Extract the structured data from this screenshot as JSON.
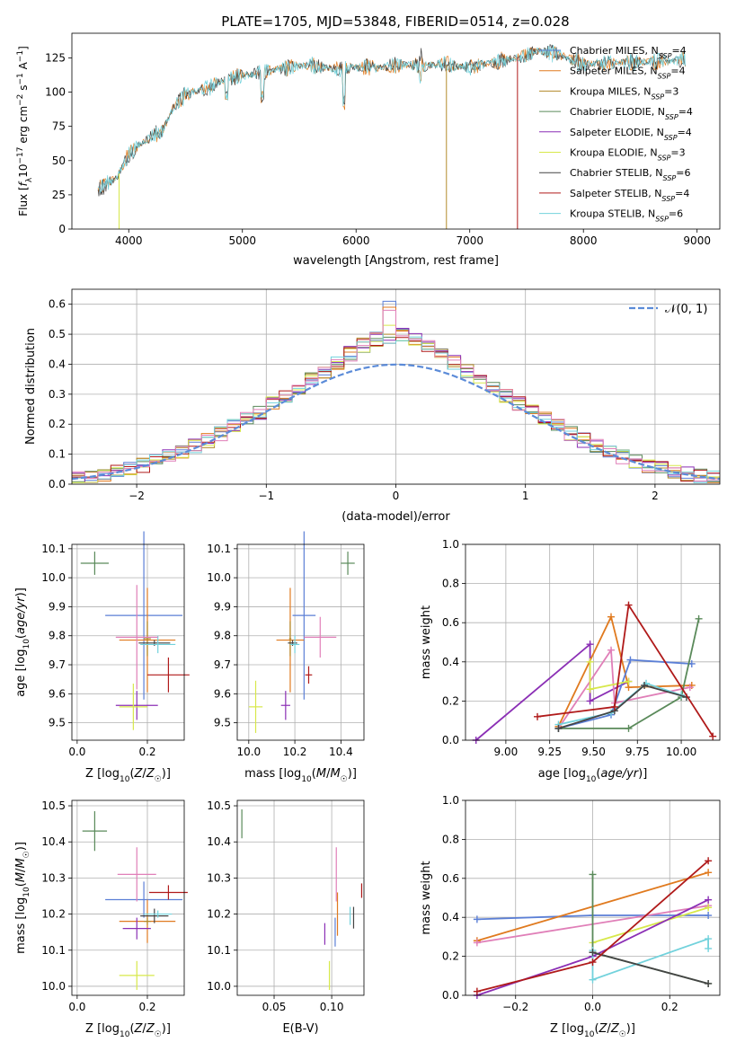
{
  "page_title": "PLATE=1705, MJD=53848, FIBERID=0514, z=0.028",
  "colors": {
    "Chabrier MILES": "#5b7fd6",
    "Salpeter MILES": "#e07a1f",
    "Kroupa MILES": "#b38a2a",
    "Chabrier ELODIE": "#5a8a5a",
    "Salpeter ELODIE": "#8b2fb5",
    "Kroupa ELODIE": "#d7e84a",
    "Chabrier STELIB": "#444444",
    "Salpeter STELIB": "#b01a1a",
    "Kroupa STELIB": "#72d2dc",
    "pink": "#e07fb8",
    "normal_curve": "#5b8bd8"
  },
  "chart_data": [
    {
      "id": "spectrum",
      "type": "line",
      "title": "PLATE=1705, MJD=53848, FIBERID=0514, z=0.028",
      "xlabel": "wavelength [Angstrom, rest frame]",
      "ylabel": "Flux [f_λ 10^-17 erg cm^-2 s^-1 A^-1]",
      "xlim": [
        3500,
        9200
      ],
      "ylim": [
        0,
        143
      ],
      "xticks": [
        4000,
        5000,
        6000,
        7000,
        8000,
        9000
      ],
      "yticks": [
        0,
        25,
        50,
        75,
        100,
        125
      ],
      "legend_position": "right",
      "series": [
        {
          "name": "Chabrier MILES, N_SSP=4"
        },
        {
          "name": "Salpeter MILES, N_SSP=4"
        },
        {
          "name": "Kroupa MILES, N_SSP=3"
        },
        {
          "name": "Chabrier ELODIE, N_SSP=4"
        },
        {
          "name": "Salpeter ELODIE, N_SSP=4"
        },
        {
          "name": "Kroupa ELODIE, N_SSP=3"
        },
        {
          "name": "Chabrier STELIB, N_SSP=6"
        },
        {
          "name": "Salpeter STELIB, N_SSP=4"
        },
        {
          "name": "Kroupa STELIB, N_SSP=6"
        }
      ],
      "continuum": {
        "x": [
          3720,
          3800,
          3900,
          4000,
          4100,
          4200,
          4300,
          4400,
          4500,
          4600,
          4700,
          4800,
          4900,
          5000,
          5200,
          5400,
          5600,
          5800,
          6000,
          6200,
          6400,
          6600,
          6800,
          7000,
          7200,
          7400,
          7600,
          7800,
          8000,
          8200,
          8500,
          8800,
          8900
        ],
        "y": [
          28,
          33,
          38,
          55,
          62,
          68,
          72,
          90,
          98,
          101,
          103,
          108,
          110,
          112,
          115,
          118,
          120,
          117,
          118,
          118,
          120,
          120,
          120,
          118,
          122,
          125,
          130,
          127,
          120,
          121,
          122,
          123,
          124
        ]
      },
      "absorption_lines": [
        {
          "x": 4861,
          "depth": 12
        },
        {
          "x": 5175,
          "depth": 20
        },
        {
          "x": 5893,
          "depth": 25
        },
        {
          "x": 6563,
          "depth": 10
        }
      ],
      "drops_to_zero": [
        {
          "x": 3915,
          "series": "Kroupa ELODIE"
        },
        {
          "x": 6795,
          "series": "Kroupa MILES"
        },
        {
          "x": 7420,
          "series": "Salpeter STELIB"
        }
      ]
    },
    {
      "id": "residual_histogram",
      "type": "line",
      "xlabel": "(data-model)/error",
      "ylabel": "Normed distribution",
      "xlim": [
        -2.5,
        2.5
      ],
      "ylim": [
        0,
        0.65
      ],
      "xticks": [
        -2,
        -1,
        0,
        1,
        2
      ],
      "xtick_labels": [
        "−2",
        "−1",
        "0",
        "1",
        "2"
      ],
      "yticks": [
        0.0,
        0.1,
        0.2,
        0.3,
        0.4,
        0.5,
        0.6
      ],
      "legend": "𝒩(0, 1)",
      "legend_position": "top-right",
      "bin_width": 0.1,
      "bin_count": 50,
      "bin_start": -2.5,
      "peak_values": [
        0.61,
        0.59,
        0.5,
        0.49,
        0.48,
        0.53,
        0.47,
        0.47,
        0.58
      ]
    },
    {
      "id": "age_vs_Z",
      "type": "scatter",
      "xlabel": "Z [log10(Z/Z☉)]",
      "ylabel": "age  [log10(age/yr)]",
      "xlim": [
        -0.015,
        0.305
      ],
      "ylim": [
        9.44,
        10.115
      ],
      "xticks": [
        0.0,
        0.2
      ],
      "yticks": [
        9.5,
        9.6,
        9.7,
        9.8,
        9.9,
        10.0,
        10.1
      ],
      "points": [
        {
          "series": "Chabrier MILES",
          "x": 0.19,
          "y": 9.87,
          "xerr": 0.11,
          "yerr": 0.29
        },
        {
          "series": "Salpeter MILES",
          "x": 0.2,
          "y": 9.785,
          "xerr": 0.08,
          "yerr": 0.18
        },
        {
          "series": "Kroupa MILES",
          "x": 0.2,
          "y": 9.79,
          "xerr": 0.01,
          "yerr": 0.06
        },
        {
          "series": "Chabrier ELODIE",
          "x": 0.05,
          "y": 10.05,
          "xerr": 0.04,
          "yerr": 0.04
        },
        {
          "series": "Salpeter ELODIE",
          "x": 0.17,
          "y": 9.56,
          "xerr": 0.06,
          "yerr": 0.05
        },
        {
          "series": "Kroupa ELODIE",
          "x": 0.16,
          "y": 9.555,
          "xerr": 0.04,
          "yerr": 0.08
        },
        {
          "series": "Chabrier STELIB",
          "x": 0.22,
          "y": 9.775,
          "xerr": 0.045,
          "yerr": 0.01
        },
        {
          "series": "Salpeter STELIB",
          "x": 0.26,
          "y": 9.665,
          "xerr": 0.06,
          "yerr": 0.06
        },
        {
          "series": "Kroupa STELIB",
          "x": 0.23,
          "y": 9.77,
          "xerr": 0.05,
          "yerr": 0.03
        },
        {
          "series": "pink",
          "x": 0.17,
          "y": 9.795,
          "xerr": 0.06,
          "yerr": 0.18
        }
      ]
    },
    {
      "id": "age_vs_mass",
      "type": "scatter",
      "xlabel": "mass [log10(M/M☉)]",
      "ylabel": "",
      "xlim": [
        9.95,
        10.5
      ],
      "ylim": [
        9.44,
        10.115
      ],
      "xticks": [
        10.0,
        10.2,
        10.4
      ],
      "yticks": [
        9.5,
        9.6,
        9.7,
        9.8,
        9.9,
        10.0,
        10.1
      ],
      "points": [
        {
          "series": "Chabrier MILES",
          "x": 10.24,
          "y": 9.87,
          "xerr": 0.05,
          "yerr": 0.29
        },
        {
          "series": "Salpeter MILES",
          "x": 10.18,
          "y": 9.785,
          "xerr": 0.06,
          "yerr": 0.18
        },
        {
          "series": "Kroupa MILES",
          "x": 10.18,
          "y": 9.79,
          "xerr": 0.005,
          "yerr": 0.06
        },
        {
          "series": "Chabrier ELODIE",
          "x": 10.43,
          "y": 10.05,
          "xerr": 0.03,
          "yerr": 0.04
        },
        {
          "series": "Salpeter ELODIE",
          "x": 10.16,
          "y": 9.56,
          "xerr": 0.02,
          "yerr": 0.05
        },
        {
          "series": "Kroupa ELODIE",
          "x": 10.03,
          "y": 9.555,
          "xerr": 0.03,
          "yerr": 0.09
        },
        {
          "series": "Chabrier STELIB",
          "x": 10.19,
          "y": 9.775,
          "xerr": 0.02,
          "yerr": 0.01
        },
        {
          "series": "Salpeter STELIB",
          "x": 10.26,
          "y": 9.665,
          "xerr": 0.015,
          "yerr": 0.03
        },
        {
          "series": "Kroupa STELIB",
          "x": 10.2,
          "y": 9.77,
          "xerr": 0.02,
          "yerr": 0.03
        },
        {
          "series": "pink",
          "x": 10.31,
          "y": 9.795,
          "xerr": 0.07,
          "yerr": 0.07
        }
      ]
    },
    {
      "id": "weight_vs_age",
      "type": "line",
      "xlabel": "age  [log10(age/yr)]",
      "ylabel": "mass weight",
      "xlim": [
        8.77,
        10.22
      ],
      "ylim": [
        0.0,
        1.0
      ],
      "xticks": [
        9.0,
        9.25,
        9.5,
        9.75,
        10.0
      ],
      "yticks": [
        0.0,
        0.2,
        0.4,
        0.6,
        0.8,
        1.0
      ],
      "series": [
        {
          "name": "Salpeter ELODIE",
          "x": [
            8.83,
            9.48,
            9.48,
            9.7
          ],
          "y": [
            0.0,
            0.49,
            0.2,
            0.3
          ]
        },
        {
          "name": "Salpeter MILES",
          "x": [
            9.3,
            9.6,
            9.7,
            10.06
          ],
          "y": [
            0.07,
            0.63,
            0.27,
            0.28
          ]
        },
        {
          "name": "pink",
          "x": [
            9.3,
            9.6,
            9.62,
            10.05
          ],
          "y": [
            0.06,
            0.46,
            0.19,
            0.27
          ]
        },
        {
          "name": "Chabrier MILES",
          "x": [
            9.3,
            9.6,
            9.71,
            10.06
          ],
          "y": [
            0.06,
            0.13,
            0.41,
            0.39
          ]
        },
        {
          "name": "Kroupa ELODIE",
          "x": [
            9.48,
            9.48,
            9.7
          ],
          "y": [
            0.4,
            0.26,
            0.3
          ]
        },
        {
          "name": "Chabrier ELODIE",
          "x": [
            9.3,
            9.7,
            10.0,
            10.1
          ],
          "y": [
            0.06,
            0.06,
            0.22,
            0.62
          ]
        },
        {
          "name": "Kroupa STELIB",
          "x": [
            9.3,
            9.6,
            9.8,
            10.0
          ],
          "y": [
            0.08,
            0.14,
            0.29,
            0.23
          ]
        },
        {
          "name": "Chabrier STELIB",
          "x": [
            9.3,
            9.62,
            9.79,
            10.03
          ],
          "y": [
            0.06,
            0.15,
            0.28,
            0.22
          ]
        },
        {
          "name": "Salpeter STELIB",
          "x": [
            9.18,
            9.62,
            9.7,
            10.18
          ],
          "y": [
            0.12,
            0.17,
            0.69,
            0.02
          ]
        }
      ]
    },
    {
      "id": "mass_vs_Z",
      "type": "scatter",
      "xlabel": "Z [log10(Z/Z☉)]",
      "ylabel": "mass [log10(M/M☉)]",
      "xlim": [
        -0.015,
        0.305
      ],
      "ylim": [
        9.975,
        10.515
      ],
      "xticks": [
        0.0,
        0.2
      ],
      "yticks": [
        10.0,
        10.1,
        10.2,
        10.3,
        10.4,
        10.5
      ],
      "points": [
        {
          "series": "Chabrier MILES",
          "x": 0.19,
          "y": 10.24,
          "xerr": 0.11,
          "yerr": 0.05
        },
        {
          "series": "Salpeter MILES",
          "x": 0.2,
          "y": 10.18,
          "xerr": 0.08,
          "yerr": 0.06
        },
        {
          "series": "Kroupa MILES",
          "x": 0.2,
          "y": 10.18,
          "xerr": 0.01,
          "yerr": 0.01
        },
        {
          "series": "Chabrier ELODIE",
          "x": 0.05,
          "y": 10.43,
          "xerr": 0.035,
          "yerr": 0.055
        },
        {
          "series": "Salpeter ELODIE",
          "x": 0.17,
          "y": 10.16,
          "xerr": 0.04,
          "yerr": 0.03
        },
        {
          "series": "Kroupa ELODIE",
          "x": 0.17,
          "y": 10.03,
          "xerr": 0.05,
          "yerr": 0.04
        },
        {
          "series": "Chabrier STELIB",
          "x": 0.22,
          "y": 10.195,
          "xerr": 0.04,
          "yerr": 0.02
        },
        {
          "series": "Salpeter STELIB",
          "x": 0.26,
          "y": 10.26,
          "xerr": 0.055,
          "yerr": 0.02
        },
        {
          "series": "Kroupa STELIB",
          "x": 0.23,
          "y": 10.2,
          "xerr": 0.04,
          "yerr": 0.01
        },
        {
          "series": "pink",
          "x": 0.17,
          "y": 10.31,
          "xerr": 0.055,
          "yerr": 0.075
        }
      ]
    },
    {
      "id": "mass_vs_ebv",
      "type": "scatter",
      "xlabel": "E(B-V)",
      "ylabel": "",
      "xlim": [
        0.018,
        0.128
      ],
      "ylim": [
        9.975,
        10.515
      ],
      "xticks": [
        0.05,
        0.1
      ],
      "yticks": [
        10.0,
        10.1,
        10.2,
        10.3,
        10.4,
        10.5
      ],
      "points": [
        {
          "series": "Chabrier ELODIE",
          "x": 0.022,
          "y": 10.45,
          "xerr": 0,
          "yerr": 0.04
        },
        {
          "series": "Salpeter ELODIE",
          "x": 0.094,
          "y": 10.145,
          "xerr": 0,
          "yerr": 0.03
        },
        {
          "series": "Kroupa ELODIE",
          "x": 0.098,
          "y": 10.03,
          "xerr": 0,
          "yerr": 0.04
        },
        {
          "series": "pink",
          "x": 0.104,
          "y": 10.31,
          "xerr": 0,
          "yerr": 0.075
        },
        {
          "series": "Salpeter MILES",
          "x": 0.105,
          "y": 10.2,
          "xerr": 0,
          "yerr": 0.06
        },
        {
          "series": "Chabrier MILES",
          "x": 0.103,
          "y": 10.15,
          "xerr": 0,
          "yerr": 0.04
        },
        {
          "series": "Kroupa STELIB",
          "x": 0.116,
          "y": 10.195,
          "xerr": 0,
          "yerr": 0.025
        },
        {
          "series": "Chabrier STELIB",
          "x": 0.119,
          "y": 10.19,
          "xerr": 0,
          "yerr": 0.03
        },
        {
          "series": "Salpeter STELIB",
          "x": 0.126,
          "y": 10.265,
          "xerr": 0,
          "yerr": 0.02
        }
      ]
    },
    {
      "id": "weight_vs_Z",
      "type": "line",
      "xlabel": "Z [log10(Z/Z☉)]",
      "ylabel": "mass weight",
      "xlim": [
        -0.33,
        0.33
      ],
      "ylim": [
        0.0,
        1.0
      ],
      "xticks": [
        -0.2,
        0.0,
        0.2
      ],
      "xtick_labels": [
        "−0.2",
        "0.0",
        "0.2"
      ],
      "yticks": [
        0.0,
        0.2,
        0.4,
        0.6,
        0.8,
        1.0
      ],
      "series": [
        {
          "name": "Chabrier MILES",
          "x": [
            -0.3,
            0.0,
            0.3
          ],
          "y": [
            0.39,
            0.41,
            0.41
          ]
        },
        {
          "name": "Salpeter MILES",
          "x": [
            -0.3,
            0.3
          ],
          "y": [
            0.28,
            0.63
          ]
        },
        {
          "name": "pink",
          "x": [
            -0.3,
            0.3
          ],
          "y": [
            0.27,
            0.46
          ]
        },
        {
          "name": "Kroupa ELODIE",
          "x": [
            0.0,
            0.3
          ],
          "y": [
            0.27,
            0.45
          ]
        },
        {
          "name": "Salpeter ELODIE",
          "x": [
            -0.3,
            0.0,
            0.3
          ],
          "y": [
            0.0,
            0.2,
            0.49
          ]
        },
        {
          "name": "Chabrier ELODIE",
          "x": [
            0.0,
            0.0,
            0.3
          ],
          "y": [
            0.62,
            0.22,
            0.06
          ]
        },
        {
          "name": "Kroupa STELIB",
          "x": [
            0.0,
            0.0,
            0.3,
            0.3
          ],
          "y": [
            0.23,
            0.08,
            0.29,
            0.24
          ]
        },
        {
          "name": "Chabrier STELIB",
          "x": [
            0.0,
            0.3
          ],
          "y": [
            0.22,
            0.06
          ]
        },
        {
          "name": "Salpeter STELIB",
          "x": [
            -0.3,
            0.0,
            0.3
          ],
          "y": [
            0.02,
            0.17,
            0.69
          ]
        }
      ]
    }
  ]
}
